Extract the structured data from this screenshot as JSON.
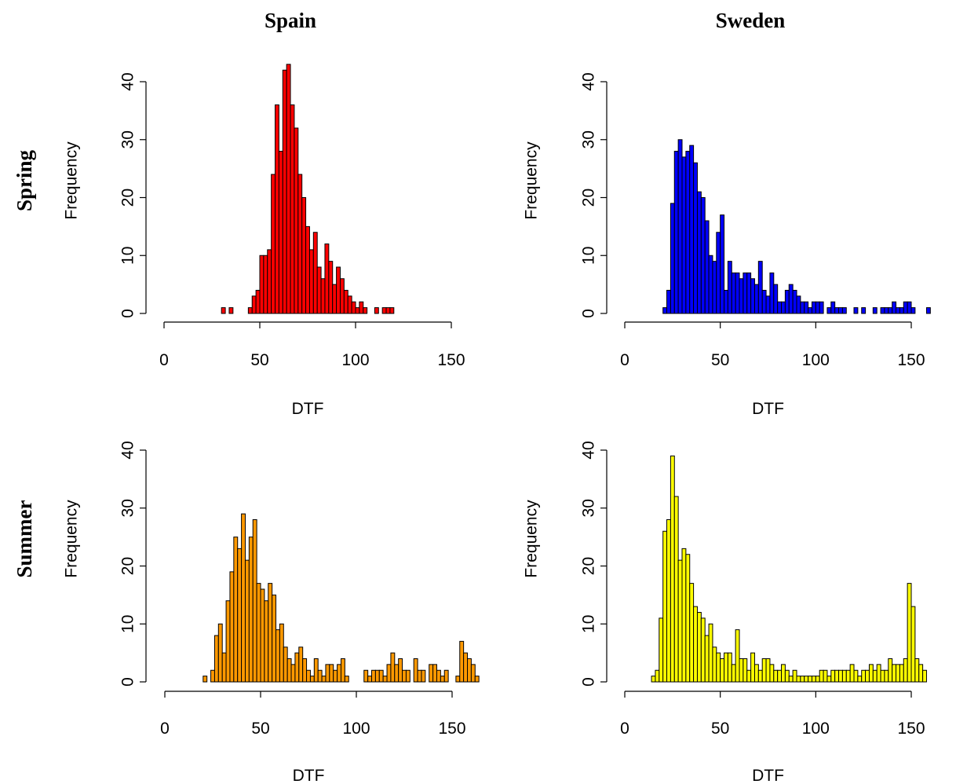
{
  "figure": {
    "col_titles": [
      "Spain",
      "Sweden"
    ],
    "row_titles": [
      "Spring",
      "Summer"
    ]
  },
  "chart_data": [
    {
      "id": "spring-spain",
      "type": "bar",
      "color": "#ff0000",
      "xlabel": "DTF",
      "ylabel": "Frequency",
      "xlim": [
        0,
        150
      ],
      "ylim": [
        0,
        40
      ],
      "xticks": [
        "0",
        "50",
        "100",
        "150"
      ],
      "yticks": [
        "0",
        "10",
        "20",
        "30",
        "40"
      ],
      "bin_start": 30,
      "bin_width": 2,
      "values": [
        1,
        0,
        1,
        0,
        0,
        0,
        0,
        1,
        3,
        4,
        10,
        10,
        11,
        24,
        36,
        28,
        42,
        43,
        36,
        32,
        24,
        20,
        15,
        11,
        14,
        8,
        6,
        12,
        9,
        5,
        8,
        6,
        4,
        3,
        2,
        1,
        2,
        1,
        0,
        0,
        1,
        0,
        1,
        1,
        1
      ]
    },
    {
      "id": "spring-sweden",
      "type": "bar",
      "color": "#0000ff",
      "xlabel": "DTF",
      "ylabel": "Frequency",
      "xlim": [
        0,
        150
      ],
      "ylim": [
        0,
        40
      ],
      "xticks": [
        "0",
        "50",
        "100",
        "150"
      ],
      "yticks": [
        "0",
        "10",
        "20",
        "30",
        "40"
      ],
      "bin_start": 20,
      "bin_width": 2,
      "values": [
        1,
        4,
        19,
        28,
        30,
        27,
        28,
        29,
        26,
        21,
        20,
        16,
        10,
        9,
        14,
        17,
        4,
        9,
        7,
        7,
        6,
        7,
        7,
        6,
        5,
        9,
        4,
        3,
        7,
        5,
        2,
        2,
        4,
        5,
        4,
        3,
        2,
        2,
        1,
        2,
        2,
        2,
        0,
        1,
        2,
        1,
        1,
        1,
        0,
        0,
        1,
        0,
        1,
        0,
        0,
        1,
        0,
        1,
        1,
        1,
        2,
        1,
        1,
        2,
        2,
        1,
        0,
        0,
        0,
        1
      ]
    },
    {
      "id": "summer-spain",
      "type": "bar",
      "color": "#ff9900",
      "xlabel": "DTF",
      "ylabel": "Frequency",
      "xlim": [
        0,
        170
      ],
      "ylim": [
        0,
        40
      ],
      "xticks": [
        "0",
        "50",
        "100",
        "150"
      ],
      "yticks": [
        "0",
        "10",
        "20",
        "30",
        "40"
      ],
      "bin_start": 20,
      "bin_width": 2,
      "values": [
        1,
        0,
        2,
        8,
        10,
        5,
        14,
        19,
        25,
        23,
        29,
        21,
        25,
        28,
        17,
        16,
        14,
        17,
        15,
        9,
        10,
        6,
        4,
        3,
        5,
        6,
        4,
        2,
        1,
        4,
        2,
        1,
        3,
        3,
        2,
        3,
        4,
        1,
        0,
        0,
        0,
        0,
        2,
        1,
        2,
        2,
        2,
        1,
        3,
        5,
        3,
        4,
        2,
        2,
        0,
        4,
        2,
        2,
        0,
        3,
        3,
        2,
        1,
        2,
        0,
        0,
        1,
        7,
        5,
        4,
        3,
        1,
        0,
        0,
        0,
        0
      ]
    },
    {
      "id": "summer-sweden",
      "type": "bar",
      "color": "#ffff00",
      "xlabel": "DTF",
      "ylabel": "Frequency",
      "xlim": [
        0,
        170
      ],
      "ylim": [
        0,
        40
      ],
      "xticks": [
        "0",
        "50",
        "100",
        "150"
      ],
      "yticks": [
        "0",
        "10",
        "20",
        "30",
        "40"
      ],
      "bin_start": 14,
      "bin_width": 2,
      "values": [
        1,
        2,
        11,
        26,
        28,
        39,
        32,
        21,
        23,
        22,
        17,
        13,
        12,
        11,
        8,
        10,
        6,
        5,
        4,
        5,
        5,
        3,
        9,
        4,
        4,
        2,
        5,
        3,
        2,
        4,
        4,
        3,
        2,
        2,
        3,
        2,
        1,
        2,
        1,
        1,
        1,
        1,
        1,
        1,
        2,
        2,
        1,
        2,
        2,
        2,
        2,
        2,
        3,
        2,
        1,
        2,
        2,
        3,
        2,
        3,
        2,
        2,
        4,
        3,
        3,
        3,
        4,
        17,
        13,
        4,
        3,
        2
      ]
    }
  ]
}
